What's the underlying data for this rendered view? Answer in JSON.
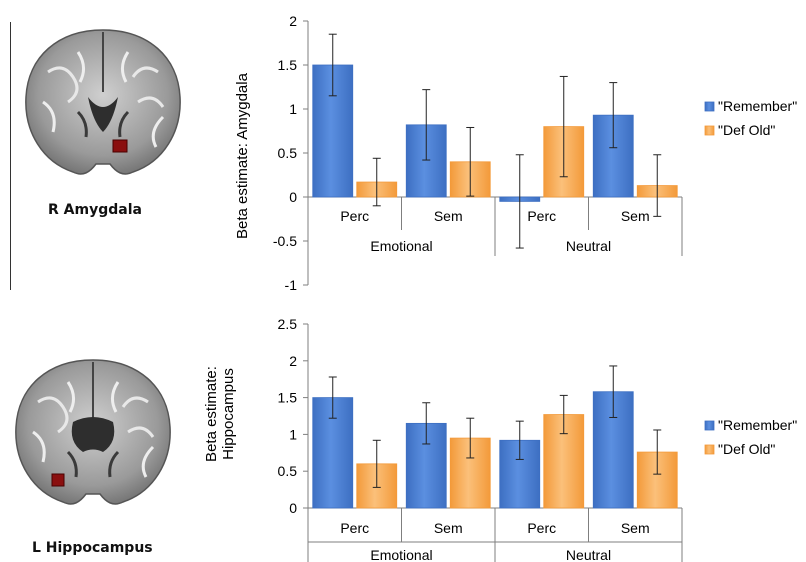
{
  "colors": {
    "remember": "#3D6FC2",
    "remember_light": "#5B8FE0",
    "def_old": "#F39A3A",
    "def_old_light": "#FBC07A",
    "axis": "#7f7f7f",
    "error_bar": "#222222",
    "highlight": "#8a0f0f"
  },
  "panels": [
    {
      "brain_label": "R Amygdala"
    },
    {
      "brain_label": "L Hippocampus"
    }
  ],
  "chart_data": [
    {
      "type": "bar",
      "ylabel": "Beta estimate: Amygdala",
      "ylim": [
        -1,
        2
      ],
      "yticks": [
        -1,
        -0.5,
        0,
        0.5,
        1,
        1.5,
        2
      ],
      "ytick_labels": [
        "-1",
        "-0.5",
        "0",
        "0.5",
        "1",
        "1.5",
        "2"
      ],
      "categories": [
        "Perc",
        "Sem",
        "Perc",
        "Sem"
      ],
      "groups": [
        "Emotional",
        "Neutral"
      ],
      "legend_position": "right",
      "series": [
        {
          "name": "\"Remember\"",
          "values": [
            1.5,
            0.82,
            -0.05,
            0.93
          ],
          "errors": [
            0.35,
            0.4,
            0.53,
            0.37
          ]
        },
        {
          "name": "\"Def Old\"",
          "values": [
            0.17,
            0.4,
            0.8,
            0.13
          ],
          "errors": [
            0.27,
            0.39,
            0.57,
            0.35
          ]
        }
      ]
    },
    {
      "type": "bar",
      "ylabel": "Beta estimate: Hippocampus",
      "ylabel_lines": [
        "Beta estimate:",
        "Hippocampus"
      ],
      "ylim": [
        0,
        2.5
      ],
      "yticks": [
        0,
        0.5,
        1,
        1.5,
        2,
        2.5
      ],
      "ytick_labels": [
        "0",
        "0.5",
        "1",
        "1.5",
        "2",
        "2.5"
      ],
      "categories": [
        "Perc",
        "Sem",
        "Perc",
        "Sem"
      ],
      "groups": [
        "Emotional",
        "Neutral"
      ],
      "legend_position": "right",
      "series": [
        {
          "name": "\"Remember\"",
          "values": [
            1.5,
            1.15,
            0.92,
            1.58
          ],
          "errors": [
            0.28,
            0.28,
            0.26,
            0.35
          ]
        },
        {
          "name": "\"Def Old\"",
          "values": [
            0.6,
            0.95,
            1.27,
            0.76
          ],
          "errors": [
            0.32,
            0.27,
            0.26,
            0.3
          ]
        }
      ]
    }
  ]
}
